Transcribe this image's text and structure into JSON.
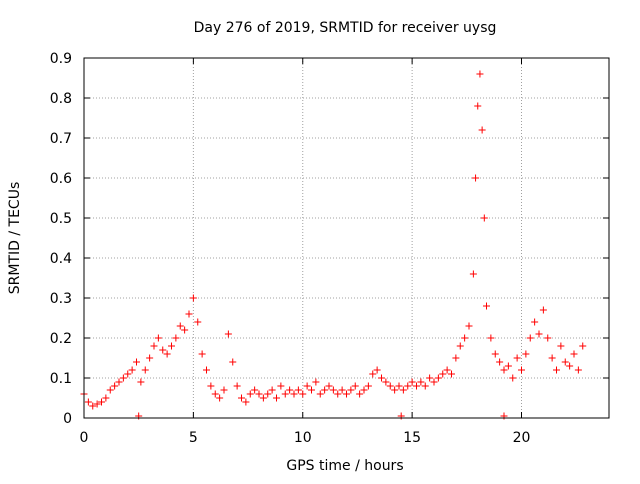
{
  "chart_data": {
    "type": "scatter",
    "title": "Day 276 of 2019, SRMTID for receiver uysg",
    "xlabel": "GPS time / hours",
    "ylabel": "SRMTID / TECUs",
    "xlim": [
      0,
      24
    ],
    "ylim": [
      0,
      0.9
    ],
    "xticks": [
      0,
      5,
      10,
      15,
      20
    ],
    "xtick_labels": [
      "0",
      "5",
      "10",
      "15",
      "20"
    ],
    "yticks": [
      0,
      0.1,
      0.2,
      0.3,
      0.4,
      0.5,
      0.6,
      0.7,
      0.8,
      0.9
    ],
    "ytick_labels": [
      "0",
      "0.1",
      "0.2",
      "0.3",
      "0.4",
      "0.5",
      "0.6",
      "0.7",
      "0.8",
      "0.9"
    ],
    "grid": true,
    "marker": "+",
    "color": "#ff0000",
    "series": [
      {
        "name": "SRMTID",
        "x": [
          0.0,
          0.2,
          0.4,
          0.6,
          0.8,
          1.0,
          1.2,
          1.4,
          1.6,
          1.8,
          2.0,
          2.2,
          2.4,
          2.6,
          2.8,
          3.0,
          3.2,
          3.4,
          3.6,
          3.8,
          4.0,
          4.2,
          4.4,
          4.6,
          4.8,
          5.0,
          5.2,
          5.4,
          5.6,
          5.8,
          6.0,
          6.2,
          6.4,
          6.6,
          6.8,
          7.0,
          7.2,
          7.4,
          7.6,
          7.8,
          8.0,
          8.2,
          8.4,
          8.6,
          8.8,
          9.0,
          9.2,
          9.4,
          9.6,
          9.8,
          10.0,
          10.2,
          10.4,
          10.6,
          10.8,
          11.0,
          11.2,
          11.4,
          11.6,
          11.8,
          12.0,
          12.2,
          12.4,
          12.6,
          12.8,
          13.0,
          13.2,
          13.4,
          13.6,
          13.8,
          14.0,
          14.2,
          14.4,
          14.6,
          14.8,
          15.0,
          15.2,
          15.4,
          15.6,
          15.8,
          16.0,
          16.2,
          16.4,
          16.6,
          16.8,
          17.0,
          17.2,
          17.4,
          17.6,
          17.8,
          17.9,
          18.0,
          18.1,
          18.2,
          18.3,
          18.4,
          18.6,
          18.8,
          19.0,
          19.2,
          19.4,
          19.6,
          19.8,
          20.0,
          20.2,
          20.4,
          20.6,
          20.8,
          21.0,
          21.2,
          21.4,
          21.6,
          21.8,
          22.0,
          22.2,
          22.4,
          22.6,
          22.8,
          2.5,
          14.5,
          19.2
        ],
        "y": [
          0.06,
          0.04,
          0.03,
          0.035,
          0.04,
          0.05,
          0.07,
          0.08,
          0.09,
          0.1,
          0.11,
          0.12,
          0.14,
          0.09,
          0.12,
          0.15,
          0.18,
          0.2,
          0.17,
          0.16,
          0.18,
          0.2,
          0.23,
          0.22,
          0.26,
          0.3,
          0.24,
          0.16,
          0.12,
          0.08,
          0.06,
          0.05,
          0.07,
          0.21,
          0.14,
          0.08,
          0.05,
          0.04,
          0.06,
          0.07,
          0.06,
          0.05,
          0.06,
          0.07,
          0.05,
          0.08,
          0.06,
          0.07,
          0.06,
          0.07,
          0.06,
          0.08,
          0.07,
          0.09,
          0.06,
          0.07,
          0.08,
          0.07,
          0.06,
          0.07,
          0.06,
          0.07,
          0.08,
          0.06,
          0.07,
          0.08,
          0.11,
          0.12,
          0.1,
          0.09,
          0.08,
          0.07,
          0.08,
          0.07,
          0.08,
          0.09,
          0.08,
          0.09,
          0.08,
          0.1,
          0.09,
          0.1,
          0.11,
          0.12,
          0.11,
          0.15,
          0.18,
          0.2,
          0.23,
          0.36,
          0.6,
          0.78,
          0.86,
          0.72,
          0.5,
          0.28,
          0.2,
          0.16,
          0.14,
          0.12,
          0.13,
          0.1,
          0.15,
          0.12,
          0.16,
          0.2,
          0.24,
          0.21,
          0.27,
          0.2,
          0.15,
          0.12,
          0.18,
          0.14,
          0.13,
          0.16,
          0.12,
          0.18,
          0.005,
          0.005,
          0.005
        ]
      }
    ]
  }
}
